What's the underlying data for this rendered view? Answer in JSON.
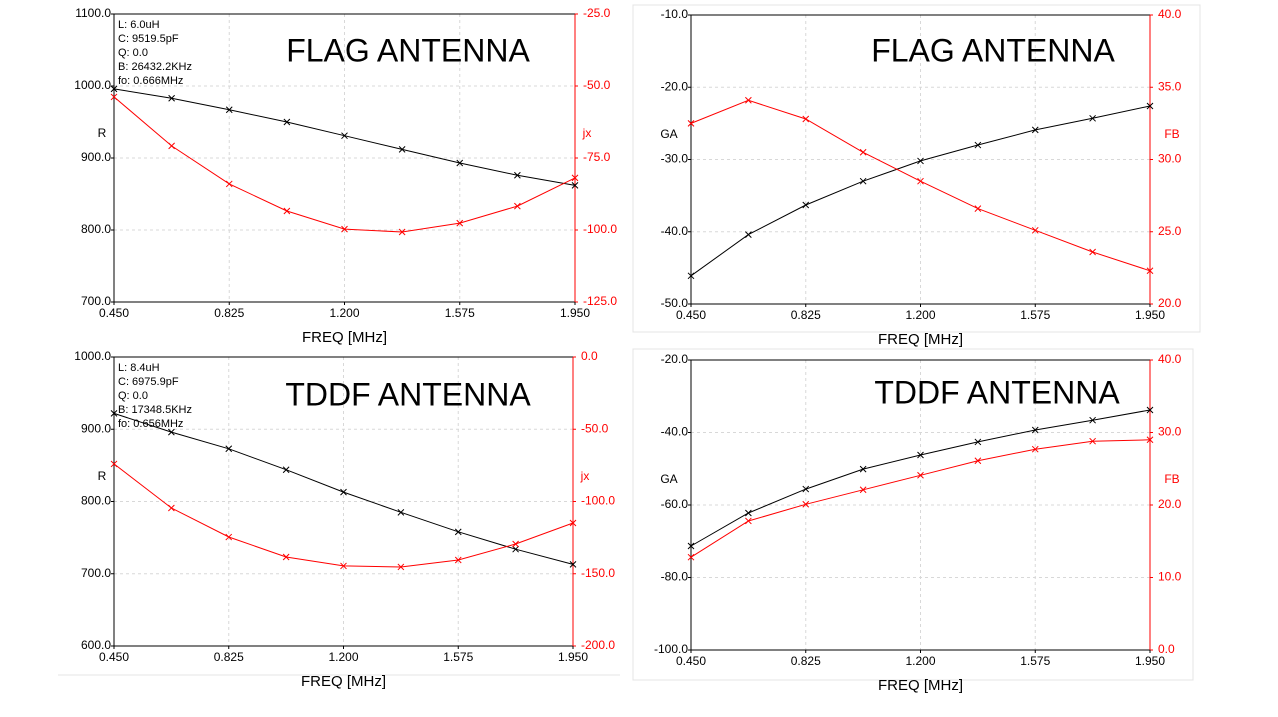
{
  "chart_data": [
    {
      "type": "line",
      "title": "FLAG ANTENNA",
      "annotations": [
        "L: 6.0uH",
        "C: 9519.5pF",
        "Q: 0.0",
        "B: 26432.2KHz",
        "fo: 0.666MHz"
      ],
      "xlabel": "FREQ [MHz]",
      "ylabel": "R",
      "y2label": "jx",
      "grid": true,
      "x": [
        0.45,
        0.6375,
        0.825,
        1.0125,
        1.2,
        1.3875,
        1.575,
        1.7625,
        1.95
      ],
      "xlim": [
        0.45,
        1.95
      ],
      "xticks": [
        {
          "value": 0.45,
          "label": "0.450"
        },
        {
          "value": 0.825,
          "label": "0.825"
        },
        {
          "value": 1.2,
          "label": "1.200"
        },
        {
          "value": 1.575,
          "label": "1.575"
        },
        {
          "value": 1.95,
          "label": "1.950"
        }
      ],
      "ylim": [
        700,
        1100
      ],
      "yticks": [
        {
          "value": 700,
          "label": "700.0"
        },
        {
          "value": 800,
          "label": "800.0"
        },
        {
          "value": 900,
          "label": "900.0"
        },
        {
          "value": 1000,
          "label": "1000.0"
        },
        {
          "value": 1100,
          "label": "1100.0"
        }
      ],
      "y2lim": [
        -125,
        -25
      ],
      "y2ticks": [
        {
          "value": -125,
          "label": "-125.0"
        },
        {
          "value": -100,
          "label": "-100.0"
        },
        {
          "value": -75,
          "label": "-75.0"
        },
        {
          "value": -50,
          "label": "-50.0"
        },
        {
          "value": -25,
          "label": "-25.0"
        }
      ],
      "series": [
        {
          "color": "#000000",
          "values": [
            996,
            983,
            967,
            950,
            931,
            912,
            893,
            876,
            862
          ]
        },
        {
          "color": "#ff0000",
          "axis": "y2",
          "values": [
            -53.8,
            -70.8,
            -84.0,
            -93.4,
            -99.7,
            -100.7,
            -97.6,
            -91.7,
            -81.9
          ]
        }
      ]
    },
    {
      "type": "line",
      "title": "FLAG ANTENNA",
      "annotations": [],
      "xlabel": "FREQ [MHz]",
      "ylabel": "GA",
      "y2label": "FB",
      "grid": true,
      "x": [
        0.45,
        0.6375,
        0.825,
        1.0125,
        1.2,
        1.3875,
        1.575,
        1.7625,
        1.95
      ],
      "xlim": [
        0.45,
        1.95
      ],
      "xticks": [
        {
          "value": 0.45,
          "label": "0.450"
        },
        {
          "value": 0.825,
          "label": "0.825"
        },
        {
          "value": 1.2,
          "label": "1.200"
        },
        {
          "value": 1.575,
          "label": "1.575"
        },
        {
          "value": 1.95,
          "label": "1.950"
        }
      ],
      "ylim": [
        -50,
        -10
      ],
      "yticks": [
        {
          "value": -50,
          "label": "-50.0"
        },
        {
          "value": -40,
          "label": "-40.0"
        },
        {
          "value": -30,
          "label": "-30.0"
        },
        {
          "value": -20,
          "label": "-20.0"
        },
        {
          "value": -10,
          "label": "-10.0"
        }
      ],
      "y2lim": [
        20,
        40
      ],
      "y2ticks": [
        {
          "value": 20,
          "label": "20.0"
        },
        {
          "value": 25,
          "label": "25.0"
        },
        {
          "value": 30,
          "label": "30.0"
        },
        {
          "value": 35,
          "label": "35.0"
        },
        {
          "value": 40,
          "label": "40.0"
        }
      ],
      "series": [
        {
          "color": "#000000",
          "values": [
            -46.1,
            -40.4,
            -36.3,
            -33.0,
            -30.2,
            -28.0,
            -25.9,
            -24.3,
            -22.6
          ]
        },
        {
          "color": "#ff0000",
          "axis": "y2",
          "values": [
            32.5,
            34.1,
            32.8,
            30.5,
            28.5,
            26.6,
            25.1,
            23.6,
            22.3
          ]
        }
      ]
    },
    {
      "type": "line",
      "title": "TDDF ANTENNA",
      "annotations": [
        "L: 8.4uH",
        "C: 6975.9pF",
        "Q: 0.0",
        "B: 17348.5KHz",
        "fo: 0.656MHz"
      ],
      "xlabel": "FREQ [MHz]",
      "ylabel": "R",
      "y2label": "jx",
      "grid": true,
      "x": [
        0.45,
        0.6375,
        0.825,
        1.0125,
        1.2,
        1.3875,
        1.575,
        1.7625,
        1.95
      ],
      "xlim": [
        0.45,
        1.95
      ],
      "xticks": [
        {
          "value": 0.45,
          "label": "0.450"
        },
        {
          "value": 0.825,
          "label": "0.825"
        },
        {
          "value": 1.2,
          "label": "1.200"
        },
        {
          "value": 1.575,
          "label": "1.575"
        },
        {
          "value": 1.95,
          "label": "1.950"
        }
      ],
      "ylim": [
        600,
        1000
      ],
      "yticks": [
        {
          "value": 600,
          "label": "600.0"
        },
        {
          "value": 700,
          "label": "700.0"
        },
        {
          "value": 800,
          "label": "800.0"
        },
        {
          "value": 900,
          "label": "900.0"
        },
        {
          "value": 1000,
          "label": "1000.0"
        }
      ],
      "y2lim": [
        -200,
        0
      ],
      "y2ticks": [
        {
          "value": -200,
          "label": "-200.0"
        },
        {
          "value": -150,
          "label": "-150.0"
        },
        {
          "value": -100,
          "label": "-100.0"
        },
        {
          "value": -50,
          "label": "-50.0"
        },
        {
          "value": 0,
          "label": "0.0"
        }
      ],
      "series": [
        {
          "color": "#000000",
          "values": [
            922,
            896,
            873,
            844,
            813,
            785,
            758,
            734,
            713
          ]
        },
        {
          "color": "#ff0000",
          "axis": "y2",
          "values": [
            -74.0,
            -104.5,
            -124.6,
            -138.4,
            -144.6,
            -145.3,
            -140.5,
            -129.4,
            -114.9
          ]
        }
      ]
    },
    {
      "type": "line",
      "title": "TDDF ANTENNA",
      "annotations": [],
      "xlabel": "FREQ [MHz]",
      "ylabel": "GA",
      "y2label": "FB",
      "grid": true,
      "x": [
        0.45,
        0.6375,
        0.825,
        1.0125,
        1.2,
        1.3875,
        1.575,
        1.7625,
        1.95
      ],
      "xlim": [
        0.45,
        1.95
      ],
      "xticks": [
        {
          "value": 0.45,
          "label": "0.450"
        },
        {
          "value": 0.825,
          "label": "0.825"
        },
        {
          "value": 1.2,
          "label": "1.200"
        },
        {
          "value": 1.575,
          "label": "1.575"
        },
        {
          "value": 1.95,
          "label": "1.950"
        }
      ],
      "ylim": [
        -100,
        -20
      ],
      "yticks": [
        {
          "value": -100,
          "label": "-100.0"
        },
        {
          "value": -80,
          "label": "-80.0"
        },
        {
          "value": -60,
          "label": "-60.0"
        },
        {
          "value": -40,
          "label": "-40.0"
        },
        {
          "value": -20,
          "label": "-20.0"
        }
      ],
      "y2lim": [
        0,
        40
      ],
      "y2ticks": [
        {
          "value": 0,
          "label": "0.0"
        },
        {
          "value": 10,
          "label": "10.0"
        },
        {
          "value": 20,
          "label": "20.0"
        },
        {
          "value": 30,
          "label": "30.0"
        },
        {
          "value": 40,
          "label": "40.0"
        }
      ],
      "series": [
        {
          "color": "#000000",
          "values": [
            -71.3,
            -62.2,
            -55.6,
            -50.1,
            -46.2,
            -42.6,
            -39.3,
            -36.6,
            -33.8
          ]
        },
        {
          "color": "#ff0000",
          "axis": "y2",
          "values": [
            12.8,
            17.8,
            20.1,
            22.1,
            24.1,
            26.1,
            27.7,
            28.8,
            29.0
          ]
        }
      ]
    }
  ]
}
